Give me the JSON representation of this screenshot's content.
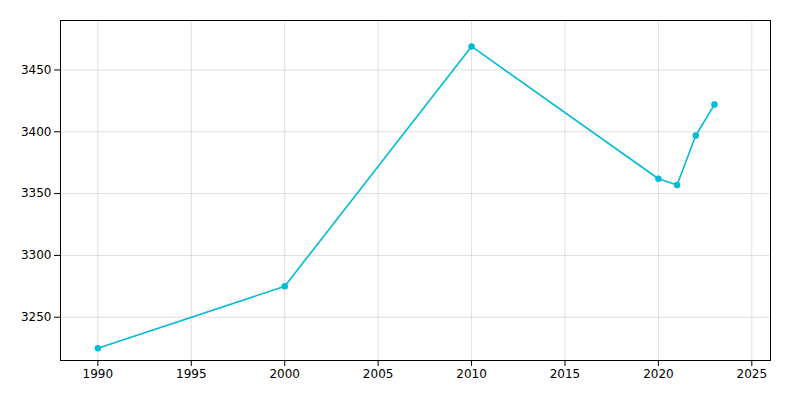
{
  "chart_data": {
    "type": "line",
    "x": [
      1990,
      2000,
      2010,
      2020,
      2021,
      2022,
      2023
    ],
    "values": [
      3225,
      3275,
      3469,
      3362,
      3357,
      3397,
      3422
    ],
    "color": "#00BCD4",
    "marker": "circle",
    "xlim": [
      1988,
      2026
    ],
    "ylim": [
      3215,
      3490
    ],
    "xticks": [
      1990,
      1995,
      2000,
      2005,
      2010,
      2015,
      2020,
      2025
    ],
    "yticks": [
      3250,
      3300,
      3350,
      3400,
      3450
    ],
    "grid": true
  }
}
